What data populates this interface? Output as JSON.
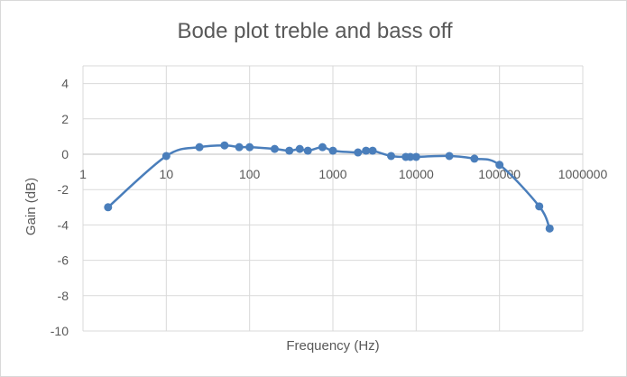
{
  "chart_data": {
    "type": "scatter",
    "title": "Bode plot treble and bass off",
    "xlabel": "Frequency (Hz)",
    "ylabel": "Gain (dB)",
    "x_scale": "log",
    "xlim": [
      1,
      1000000
    ],
    "ylim": [
      -10,
      5
    ],
    "x_tick_labels": [
      "1",
      "10",
      "100",
      "1000",
      "10000",
      "100000",
      "1000000"
    ],
    "y_tick_labels": [
      "4",
      "2",
      "0",
      "-2",
      "-4",
      "-6",
      "-8",
      "-10"
    ],
    "grid": true,
    "legend": "none",
    "series_color": "#4a7ebb",
    "smooth_line": true,
    "series": [
      {
        "x": [
          2,
          10,
          25,
          50,
          75,
          100,
          200,
          300,
          400,
          500,
          750,
          1000,
          2000,
          2500,
          3000,
          5000,
          7500,
          8500,
          10000,
          25000,
          50000,
          100000,
          300000,
          400000
        ],
        "y": [
          -3.0,
          -0.1,
          0.4,
          0.5,
          0.4,
          0.4,
          0.3,
          0.2,
          0.3,
          0.2,
          0.4,
          0.2,
          0.1,
          0.2,
          0.2,
          -0.1,
          -0.15,
          -0.15,
          -0.15,
          -0.1,
          -0.25,
          -0.6,
          -2.95,
          -4.2
        ]
      }
    ]
  }
}
